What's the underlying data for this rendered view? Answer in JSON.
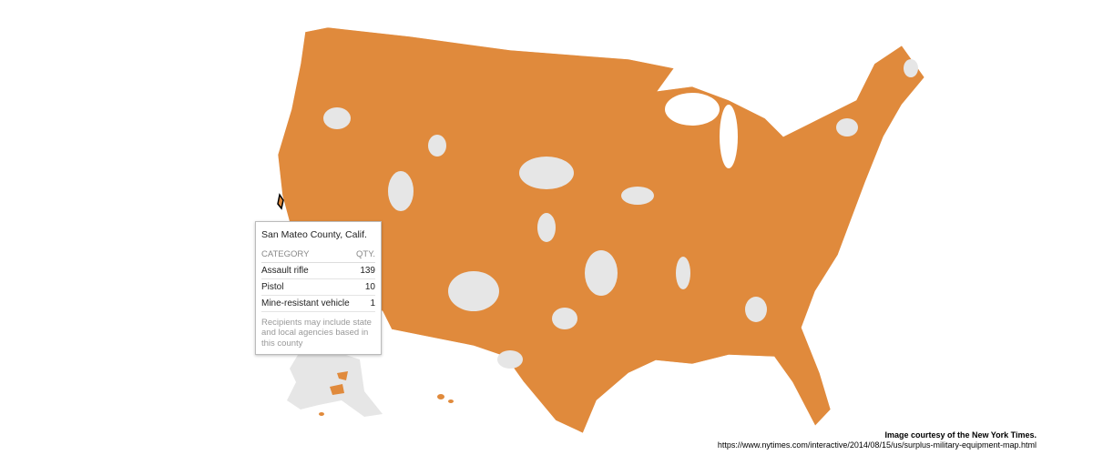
{
  "tooltip": {
    "title": "San Mateo County, Calif.",
    "columns": [
      "CATEGORY",
      "QTY."
    ],
    "rows": [
      [
        "Assault rifle",
        139
      ],
      [
        "Pistol",
        10
      ],
      [
        "Mine-resistant vehicle",
        1
      ]
    ],
    "note": "Recipients may include state and local agencies based in this county"
  },
  "credit": {
    "title": "Image courtesy of the New York Times.",
    "url": "https://www.nytimes.com/interactive/2014/08/15/us/surplus-military-equipment-map.html"
  }
}
